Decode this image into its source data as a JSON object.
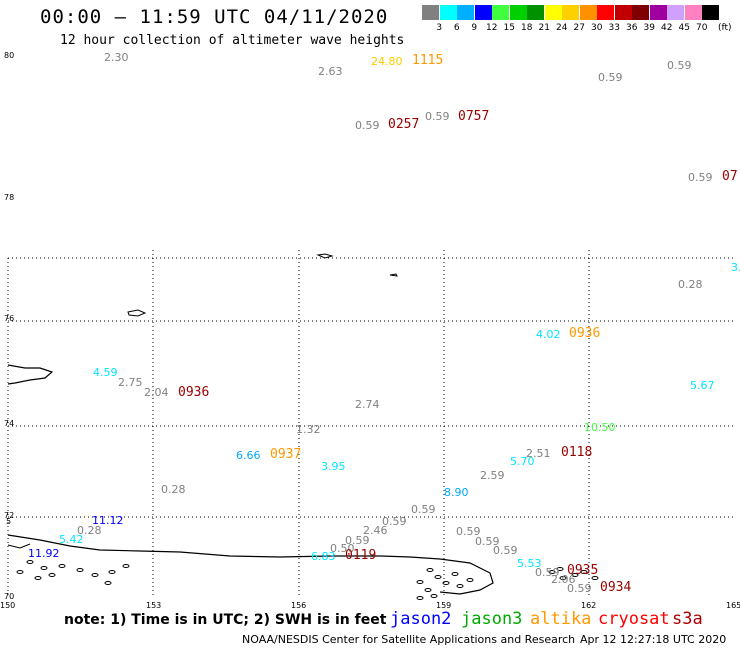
{
  "header": {
    "title": "00:00 — 11:59 UTC 04/11/2020",
    "subtitle": "12 hour collection of altimeter wave heights"
  },
  "legend": {
    "labels": [
      "3",
      "6",
      "9",
      "12",
      "15",
      "18",
      "21",
      "24",
      "27",
      "30",
      "33",
      "36",
      "39",
      "42",
      "45",
      "70"
    ],
    "unit": "(ft)",
    "colors": [
      "#808080",
      "#00ffff",
      "#00b0ff",
      "#0000ff",
      "#40ff40",
      "#00d000",
      "#009000",
      "#ffff00",
      "#ffd000",
      "#ff9000",
      "#ff0000",
      "#c00000",
      "#800000",
      "#a000a0",
      "#d0a0ff",
      "#ff80c0",
      "#000000"
    ]
  },
  "axes": {
    "lon_labels": [
      {
        "text": "150",
        "pos": 0
      },
      {
        "text": "153",
        "pos": 1
      },
      {
        "text": "156",
        "pos": 2
      },
      {
        "text": "159",
        "pos": 3
      },
      {
        "text": "162",
        "pos": 4
      },
      {
        "text": "165",
        "pos": 5
      }
    ],
    "lat_labels": [
      {
        "text": "80",
        "pos": 0
      },
      {
        "text": "78",
        "pos": 1
      },
      {
        "text": "76",
        "pos": 2
      },
      {
        "text": "74",
        "pos": 3
      },
      {
        "text": "72",
        "pos": 4
      },
      {
        "text": "70",
        "pos": 5
      }
    ],
    "extra_lat_label": "5"
  },
  "observations": {
    "values": [
      {
        "text": "2.30",
        "c": "gray"
      },
      {
        "text": "2.63",
        "c": "gray"
      },
      {
        "text": "24.80",
        "c": "yellow"
      },
      {
        "text": "0.59",
        "c": "gray"
      },
      {
        "text": "0.59",
        "c": "gray"
      },
      {
        "text": "0.59",
        "c": "gray"
      },
      {
        "text": "0.59",
        "c": "gray"
      },
      {
        "text": "0.59",
        "c": "gray"
      },
      {
        "text": "3.",
        "c": "cyan"
      },
      {
        "text": "0.28",
        "c": "gray"
      },
      {
        "text": "4.02",
        "c": "cyan"
      },
      {
        "text": "4.59",
        "c": "cyan"
      },
      {
        "text": "2.75",
        "c": "gray"
      },
      {
        "text": "2.04",
        "c": "gray"
      },
      {
        "text": "5.67",
        "c": "cyan"
      },
      {
        "text": "2.74",
        "c": "gray"
      },
      {
        "text": "1.32",
        "c": "gray"
      },
      {
        "text": "10.50",
        "c": "green"
      },
      {
        "text": "6.66",
        "c": "blue2"
      },
      {
        "text": "3.95",
        "c": "cyan"
      },
      {
        "text": "2.51",
        "c": "gray"
      },
      {
        "text": "5.70",
        "c": "cyan"
      },
      {
        "text": "2.59",
        "c": "gray"
      },
      {
        "text": "0.28",
        "c": "gray"
      },
      {
        "text": "8.90",
        "c": "blue2"
      },
      {
        "text": "0.59",
        "c": "gray"
      },
      {
        "text": "11.12",
        "c": "blue"
      },
      {
        "text": "0.59",
        "c": "gray"
      },
      {
        "text": "0.28",
        "c": "gray"
      },
      {
        "text": "2.46",
        "c": "gray"
      },
      {
        "text": "5.42",
        "c": "cyan"
      },
      {
        "text": "0.59",
        "c": "gray"
      },
      {
        "text": "0.59",
        "c": "gray"
      },
      {
        "text": "0.59",
        "c": "gray"
      },
      {
        "text": "0.59",
        "c": "gray"
      },
      {
        "text": "11.92",
        "c": "blue"
      },
      {
        "text": "6.83",
        "c": "cyan"
      },
      {
        "text": "0.50",
        "c": "gray"
      },
      {
        "text": "5.53",
        "c": "cyan"
      },
      {
        "text": "0.59",
        "c": "gray"
      },
      {
        "text": "2.06",
        "c": "gray"
      },
      {
        "text": "0.59",
        "c": "gray"
      }
    ],
    "times": [
      {
        "text": "1115",
        "c": "orange"
      },
      {
        "text": "0757",
        "c": "darkred"
      },
      {
        "text": "0257",
        "c": "darkred"
      },
      {
        "text": "07",
        "c": "darkred"
      },
      {
        "text": "0936",
        "c": "orange"
      },
      {
        "text": "0936",
        "c": "darkred"
      },
      {
        "text": "0937",
        "c": "orange"
      },
      {
        "text": "0118",
        "c": "darkred"
      },
      {
        "text": "0119",
        "c": "darkred"
      },
      {
        "text": "0935",
        "c": "darkred"
      },
      {
        "text": "0934",
        "c": "darkred"
      }
    ],
    "palette": {
      "gray": "#808080",
      "cyan": "#00e5ff",
      "blue2": "#00a8ff",
      "blue": "#0000ff",
      "green": "#40ff40",
      "yellow": "#ffcc00",
      "orange": "#ff9900",
      "darkred": "#990000"
    }
  },
  "footer": {
    "note": "note: 1) Time is in UTC; 2) SWH is in feet",
    "satellites": [
      {
        "name": "jason2",
        "color": "#0000ff"
      },
      {
        "name": "jason3",
        "color": "#00aa00"
      },
      {
        "name": "altika",
        "color": "#ff9900"
      },
      {
        "name": "cryosat",
        "color": "#ff0000"
      },
      {
        "name": "s3a",
        "color": "#aa0000"
      }
    ],
    "credit": "NOAA/NESDIS Center for Satellite Applications and Research",
    "stamp": "Apr 12 12:27:18 UTC 2020"
  }
}
